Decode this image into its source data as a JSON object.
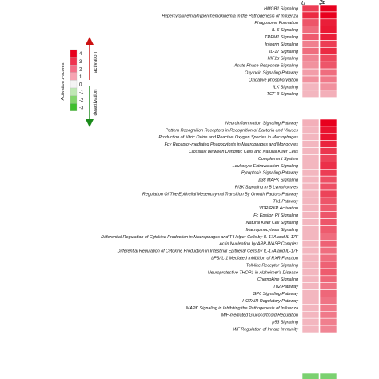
{
  "chart_data": {
    "type": "heatmap",
    "columns": [
      "F",
      "M"
    ],
    "groups": [
      {
        "rows": [
          "HMGB1 Signaling",
          "Hypercytokinemia/hyperchemokinemia in the Pathogenesis of Influenza",
          "Phagosome Formation",
          "IL-6 Signaling",
          "TREM1 Signaling",
          "Integrin Signaling",
          "IL-17 Signaling",
          "HIF1α Signaling",
          "Acute Phase Response Signaling",
          "Oxytocin Signaling Pathway",
          "Oxidative phosphorylation",
          "ILK Signaling",
          "TGF-β Signaling"
        ],
        "values": [
          [
            3.0,
            4.0
          ],
          [
            3.3,
            4.0
          ],
          [
            2.6,
            3.5
          ],
          [
            2.2,
            3.6
          ],
          [
            2.5,
            3.5
          ],
          [
            1.9,
            3.0
          ],
          [
            2.2,
            3.3
          ],
          [
            1.8,
            2.8
          ],
          [
            1.6,
            2.6
          ],
          [
            1.4,
            2.2
          ],
          [
            1.6,
            2.0
          ],
          [
            1.0,
            1.6
          ],
          [
            1.0,
            1.1
          ]
        ]
      },
      {
        "rows": [
          "Neuroinflammation Signaling Pathway",
          "Pattern Recognition Receptors in Recognition of Bacteria and Viruses",
          "Production of Nitric Oxide and Reactive Oxygen Species in Macrophages",
          "Fcγ Receptor-mediated Phagocytosis in Macrophages and Monocytes",
          "Crosstalk between Dendritic Cells and Natural Killer Cells",
          "Complement System",
          "Leukocyte Extravasation Signaling",
          "Pyroptosis Signaling Pathway",
          "p38 MAPK Signaling",
          "PI3K Signaling in B Lymphocytes",
          "Regulation Of The Epithelial Mesenchymal Transition By Growth Factors Pathway",
          "Th1 Pathway",
          "VDR/RXR Activation",
          "Fc Epsilon RI Signaling",
          "Natural Killer Cell Signaling",
          "Macropinocytosis Signaling",
          "Differential Regulation of Cytokine Production in Macrophages and T Helper Cells by IL-17A and IL-17F",
          "Actin Nucleation by ARP-WASP Complex",
          "Differential Regulation of Cytokine Production in Intestinal Epithelial Cells by IL-17A and IL-17F",
          "LPS/IL-1 Mediated Inhibition of RXR Function",
          "Toll-like Receptor Signaling",
          "Neuroprotective THOP1 in Alzheimer's Disease",
          "Chemokine Signaling",
          "Th2 Pathway",
          "GP6 Signaling Pathway",
          "HOTAIR Regulatory Pathway",
          "MAPK Signaling in Inhibiting the Pathogenesis of Influenza",
          "MIF-mediated Glucocorticoid Regulation",
          "p53 Signaling",
          "MIF Regulation of Innate Immunity"
        ],
        "values": [
          [
            1.1,
            4.0
          ],
          [
            1.0,
            3.7
          ],
          [
            1.0,
            3.7
          ],
          [
            1.0,
            3.4
          ],
          [
            1.0,
            3.1
          ],
          [
            1.0,
            2.9
          ],
          [
            1.0,
            3.2
          ],
          [
            1.0,
            3.0
          ],
          [
            1.0,
            2.7
          ],
          [
            1.0,
            2.7
          ],
          [
            1.0,
            2.9
          ],
          [
            1.0,
            2.6
          ],
          [
            1.0,
            2.5
          ],
          [
            1.0,
            2.6
          ],
          [
            1.0,
            2.6
          ],
          [
            1.0,
            2.5
          ],
          [
            1.0,
            2.2
          ],
          [
            1.0,
            2.4
          ],
          [
            1.0,
            2.2
          ],
          [
            1.0,
            2.2
          ],
          [
            1.0,
            2.4
          ],
          [
            1.0,
            2.5
          ],
          [
            1.0,
            2.3
          ],
          [
            1.0,
            2.1
          ],
          [
            1.0,
            2.3
          ],
          [
            1.0,
            2.1
          ],
          [
            1.0,
            2.0
          ],
          [
            1.0,
            2.0
          ],
          [
            1.0,
            1.9
          ],
          [
            1.0,
            1.8
          ]
        ]
      },
      {
        "rows": [
          ""
        ],
        "values": [
          [
            -2.0,
            -2.0
          ]
        ]
      }
    ],
    "legend": {
      "title": "Activation z-scores",
      "ticks": [
        "4",
        "3",
        "2",
        "1",
        "0",
        "-1",
        "-2",
        "-3"
      ],
      "colors": [
        "#e8001e",
        "#ef3350",
        "#f46e88",
        "#f7a3b3",
        "#f4f4f4",
        "#bfe8b4",
        "#83d66d",
        "#3fbf2e"
      ],
      "up_label": "activation",
      "down_label": "deactivation",
      "up_color": "#cc1111",
      "down_color": "#1a8a1a"
    }
  }
}
